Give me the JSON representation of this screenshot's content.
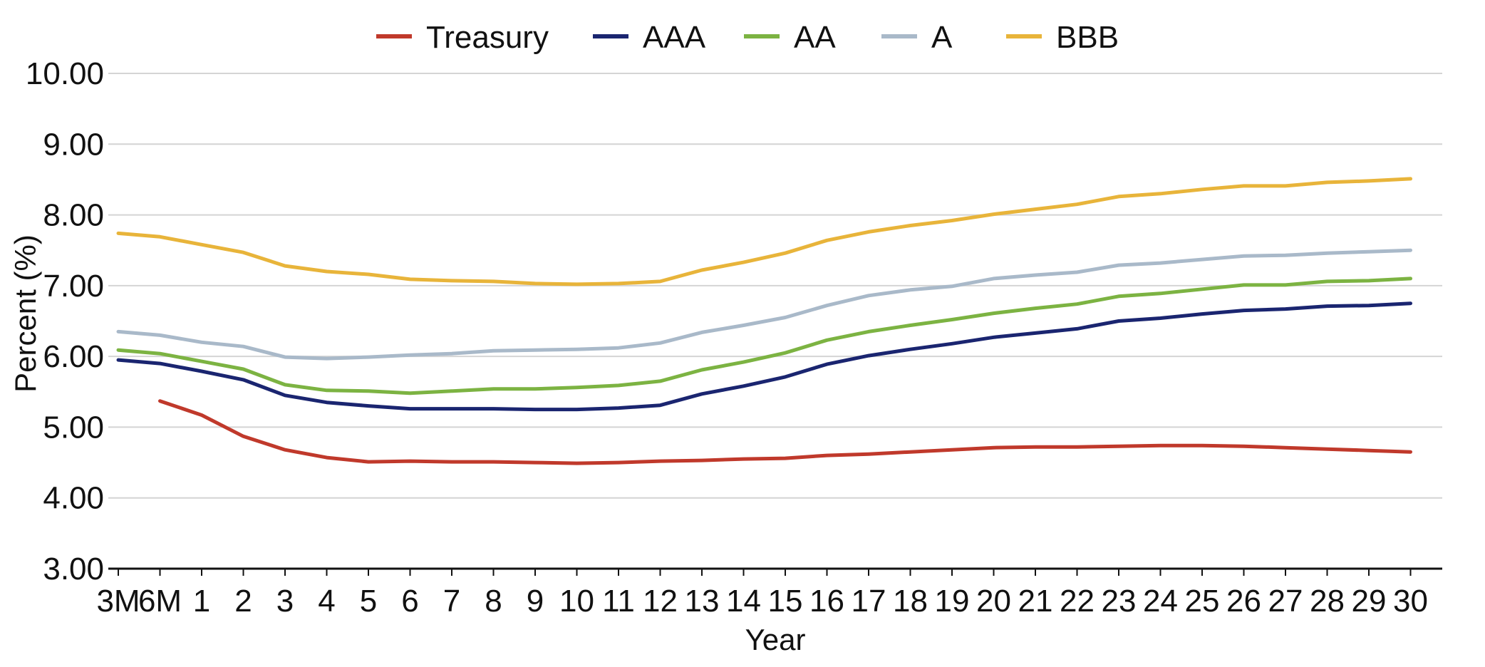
{
  "chart_data": {
    "type": "line",
    "title": "",
    "xlabel": "Year",
    "ylabel": "Percent (%)",
    "ylim": [
      3,
      10
    ],
    "yticks": [
      "3.00",
      "4.00",
      "5.00",
      "6.00",
      "7.00",
      "8.00",
      "9.00",
      "10.00"
    ],
    "grid": "horizontal",
    "legend_position": "top",
    "categories": [
      "3M",
      "6M",
      "1",
      "2",
      "3",
      "4",
      "5",
      "6",
      "7",
      "8",
      "9",
      "10",
      "11",
      "12",
      "13",
      "14",
      "15",
      "16",
      "17",
      "18",
      "19",
      "20",
      "21",
      "22",
      "23",
      "24",
      "25",
      "26",
      "27",
      "28",
      "29",
      "30"
    ],
    "series": [
      {
        "name": "Treasury",
        "color": "#c0392b",
        "values": [
          null,
          5.37,
          5.17,
          4.87,
          4.68,
          4.57,
          4.51,
          4.52,
          4.51,
          4.51,
          4.5,
          4.49,
          4.5,
          4.52,
          4.53,
          4.55,
          4.56,
          4.6,
          4.62,
          4.65,
          4.68,
          4.71,
          4.72,
          4.72,
          4.73,
          4.74,
          4.74,
          4.73,
          4.71,
          4.69,
          4.67,
          4.65
        ]
      },
      {
        "name": "AAA",
        "color": "#1a2570",
        "values": [
          5.95,
          5.9,
          5.79,
          5.67,
          5.45,
          5.35,
          5.3,
          5.26,
          5.26,
          5.26,
          5.25,
          5.25,
          5.27,
          5.31,
          5.47,
          5.58,
          5.71,
          5.89,
          6.01,
          6.1,
          6.18,
          6.27,
          6.33,
          6.39,
          6.5,
          6.54,
          6.6,
          6.65,
          6.67,
          6.71,
          6.72,
          6.75
        ]
      },
      {
        "name": "AA",
        "color": "#7cb342",
        "values": [
          6.09,
          6.04,
          5.93,
          5.82,
          5.6,
          5.52,
          5.51,
          5.48,
          5.51,
          5.54,
          5.54,
          5.56,
          5.59,
          5.65,
          5.81,
          5.92,
          6.05,
          6.23,
          6.35,
          6.44,
          6.52,
          6.61,
          6.68,
          6.74,
          6.85,
          6.89,
          6.95,
          7.01,
          7.01,
          7.06,
          7.07,
          7.1
        ]
      },
      {
        "name": "A",
        "color": "#a9b9c9",
        "values": [
          6.35,
          6.3,
          6.2,
          6.14,
          5.99,
          5.97,
          5.99,
          6.02,
          6.04,
          6.08,
          6.09,
          6.1,
          6.12,
          6.19,
          6.34,
          6.44,
          6.55,
          6.72,
          6.86,
          6.94,
          6.99,
          7.1,
          7.15,
          7.19,
          7.29,
          7.32,
          7.37,
          7.42,
          7.43,
          7.46,
          7.48,
          7.5
        ]
      },
      {
        "name": "BBB",
        "color": "#e8b43a",
        "values": [
          7.74,
          7.69,
          7.58,
          7.47,
          7.28,
          7.2,
          7.16,
          7.09,
          7.07,
          7.06,
          7.03,
          7.02,
          7.03,
          7.06,
          7.22,
          7.33,
          7.46,
          7.64,
          7.76,
          7.85,
          7.92,
          8.01,
          8.08,
          8.15,
          8.26,
          8.3,
          8.36,
          8.41,
          8.41,
          8.46,
          8.48,
          8.51
        ]
      }
    ]
  }
}
